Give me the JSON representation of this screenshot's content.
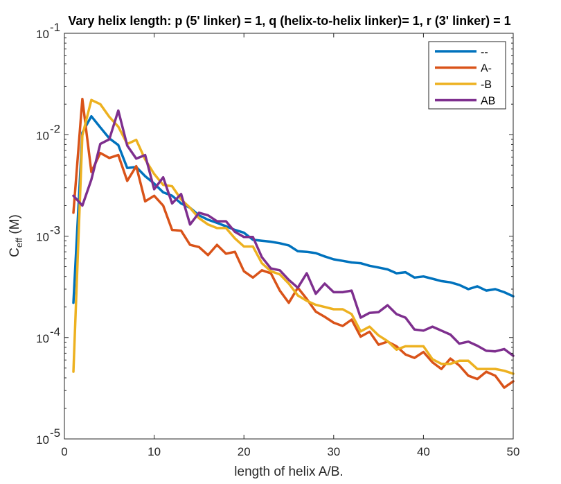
{
  "chart_data": {
    "type": "line",
    "title": "Vary helix length: p (5' linker) = 1, q (helix-to-helix linker)= 1, r (3' linker) = 1",
    "xlabel": "length of helix A/B.",
    "ylabel_main": "C",
    "ylabel_sub": "eff",
    "ylabel_unit": " (M)",
    "xlim": [
      0,
      50
    ],
    "ylim": [
      1e-05,
      0.1
    ],
    "yscale": "log",
    "grid": false,
    "legend_position": "top-right",
    "x_ticks": [
      {
        "value": 0,
        "label": "0"
      },
      {
        "value": 10,
        "label": "10"
      },
      {
        "value": 20,
        "label": "20"
      },
      {
        "value": 30,
        "label": "30"
      },
      {
        "value": 40,
        "label": "40"
      },
      {
        "value": 50,
        "label": "50"
      }
    ],
    "y_ticks": [
      {
        "value": 0.1,
        "base": "10",
        "exp": "-1"
      },
      {
        "value": 0.01,
        "base": "10",
        "exp": "-2"
      },
      {
        "value": 0.001,
        "base": "10",
        "exp": "-3"
      },
      {
        "value": 0.0001,
        "base": "10",
        "exp": "-4"
      },
      {
        "value": 1e-05,
        "base": "10",
        "exp": "-5"
      }
    ],
    "x": [
      1,
      2,
      3,
      4,
      5,
      6,
      7,
      8,
      9,
      10,
      11,
      12,
      13,
      14,
      15,
      16,
      17,
      18,
      19,
      20,
      21,
      22,
      23,
      24,
      25,
      26,
      27,
      28,
      29,
      30,
      31,
      32,
      33,
      34,
      35,
      36,
      37,
      38,
      39,
      40,
      41,
      42,
      43,
      44,
      45,
      46,
      47,
      48,
      49,
      50
    ],
    "series": [
      {
        "name": "--",
        "color": "#0072BD",
        "values": [
          0.00022,
          0.0105,
          0.0152,
          0.0118,
          0.0092,
          0.0079,
          0.0047,
          0.0048,
          0.0039,
          0.0033,
          0.0027,
          0.0025,
          0.0021,
          0.0019,
          0.0016,
          0.00145,
          0.00135,
          0.00125,
          0.00115,
          0.00108,
          0.00092,
          0.0009,
          0.00088,
          0.00085,
          0.00081,
          0.00071,
          0.0007,
          0.00068,
          0.00063,
          0.00059,
          0.00057,
          0.00055,
          0.00054,
          0.00051,
          0.00049,
          0.00047,
          0.00043,
          0.00044,
          0.00039,
          0.0004,
          0.00038,
          0.00036,
          0.00035,
          0.00033,
          0.0003,
          0.00032,
          0.00029,
          0.0003,
          0.00028,
          0.000255
        ]
      },
      {
        "name": "A-",
        "color": "#D95319",
        "values": [
          0.0017,
          0.0225,
          0.0043,
          0.0066,
          0.0059,
          0.0063,
          0.0035,
          0.0049,
          0.0022,
          0.0025,
          0.002,
          0.00115,
          0.00113,
          0.00082,
          0.00078,
          0.00065,
          0.00082,
          0.00067,
          0.0007,
          0.00045,
          0.00039,
          0.00046,
          0.00043,
          0.00029,
          0.00022,
          0.00031,
          0.00024,
          0.00018,
          0.00016,
          0.00014,
          0.00013,
          0.00015,
          0.000102,
          0.000114,
          8.5e-05,
          9.1e-05,
          8.2e-05,
          6.8e-05,
          6.3e-05,
          7.2e-05,
          5.7e-05,
          4.9e-05,
          6.2e-05,
          5.3e-05,
          4.2e-05,
          3.9e-05,
          4.6e-05,
          4.2e-05,
          3.2e-05,
          3.7e-05
        ]
      },
      {
        "name": "-B",
        "color": "#EDB120",
        "values": [
          4.6e-05,
          0.0098,
          0.022,
          0.02,
          0.015,
          0.012,
          0.0081,
          0.0089,
          0.0057,
          0.0041,
          0.0032,
          0.0031,
          0.0023,
          0.0019,
          0.0015,
          0.0013,
          0.0012,
          0.0012,
          0.00095,
          0.00079,
          0.00079,
          0.00054,
          0.00045,
          0.00042,
          0.00034,
          0.00026,
          0.00023,
          0.00021,
          0.0002,
          0.00019,
          0.00019,
          0.00017,
          0.000115,
          0.000128,
          0.000105,
          9.2e-05,
          7.6e-05,
          8.2e-05,
          8.2e-05,
          8.2e-05,
          6.1e-05,
          5.5e-05,
          5.5e-05,
          5.9e-05,
          5.9e-05,
          4.9e-05,
          4.9e-05,
          4.9e-05,
          4.7e-05,
          4.4e-05
        ]
      },
      {
        "name": "AB",
        "color": "#7E2F8E",
        "values": [
          0.0025,
          0.002,
          0.0036,
          0.0081,
          0.009,
          0.0173,
          0.0078,
          0.0058,
          0.0063,
          0.0029,
          0.0038,
          0.0021,
          0.0026,
          0.0013,
          0.0017,
          0.0016,
          0.0014,
          0.0014,
          0.0011,
          0.00098,
          0.00098,
          0.00062,
          0.00048,
          0.00046,
          0.00037,
          0.00031,
          0.00043,
          0.00027,
          0.00034,
          0.00028,
          0.00028,
          0.00029,
          0.000157,
          0.000175,
          0.000178,
          0.000208,
          0.00017,
          0.000157,
          0.00012,
          0.000117,
          0.000128,
          0.000117,
          0.000107,
          8.7e-05,
          9.1e-05,
          8.3e-05,
          7.4e-05,
          7.3e-05,
          7.7e-05,
          6.6e-05
        ]
      }
    ]
  }
}
